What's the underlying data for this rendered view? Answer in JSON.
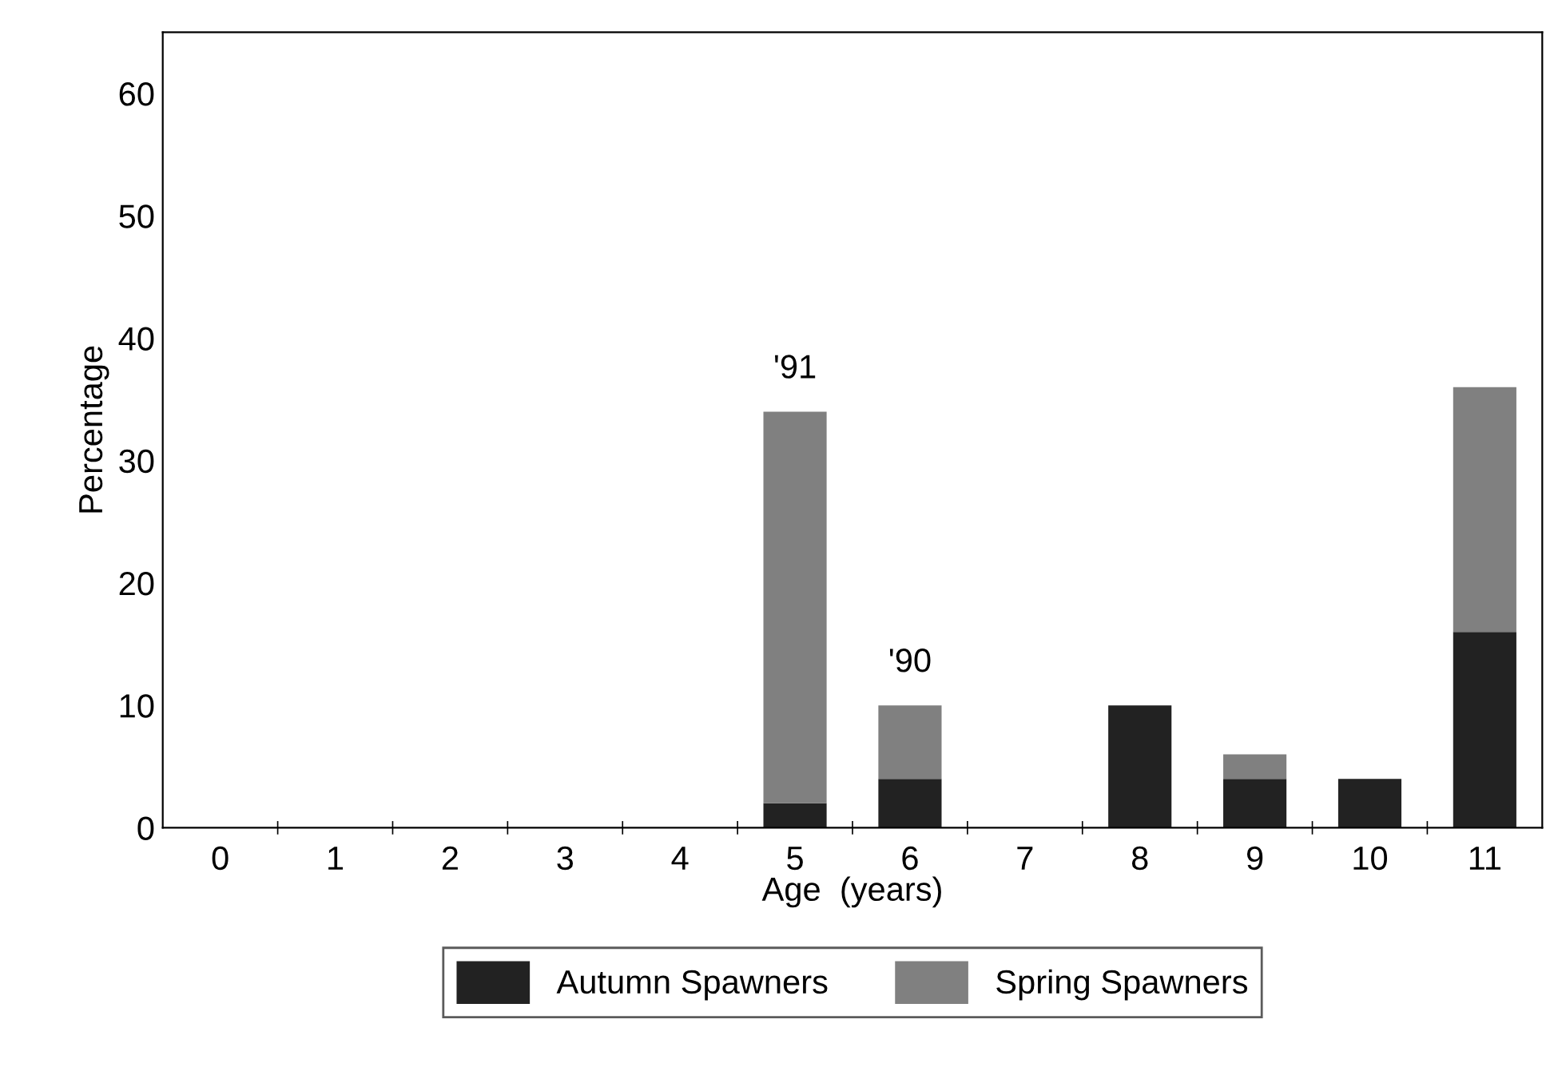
{
  "chart_data": {
    "type": "bar",
    "stacked": true,
    "xlabel": "Age  (years)",
    "ylabel": "Percentage",
    "categories": [
      "0",
      "1",
      "2",
      "3",
      "4",
      "5",
      "6",
      "7",
      "8",
      "9",
      "10",
      "11"
    ],
    "series": [
      {
        "name": "Autumn Spawners",
        "color": "#222222",
        "values": [
          0,
          0,
          0,
          0,
          0,
          2,
          4,
          0,
          10,
          4,
          4,
          16
        ]
      },
      {
        "name": "Spring Spawners",
        "color": "#808080",
        "values": [
          0,
          0,
          0,
          0,
          0,
          32,
          6,
          0,
          0,
          2,
          0,
          20
        ]
      }
    ],
    "annotations": [
      {
        "text": "'91",
        "x": "5",
        "y": 34
      },
      {
        "text": "'90",
        "x": "6",
        "y": 10
      }
    ],
    "ylim": [
      0,
      65
    ],
    "yticks": [
      0,
      10,
      20,
      30,
      40,
      50,
      60
    ],
    "grid": false,
    "legend": "bottom"
  }
}
